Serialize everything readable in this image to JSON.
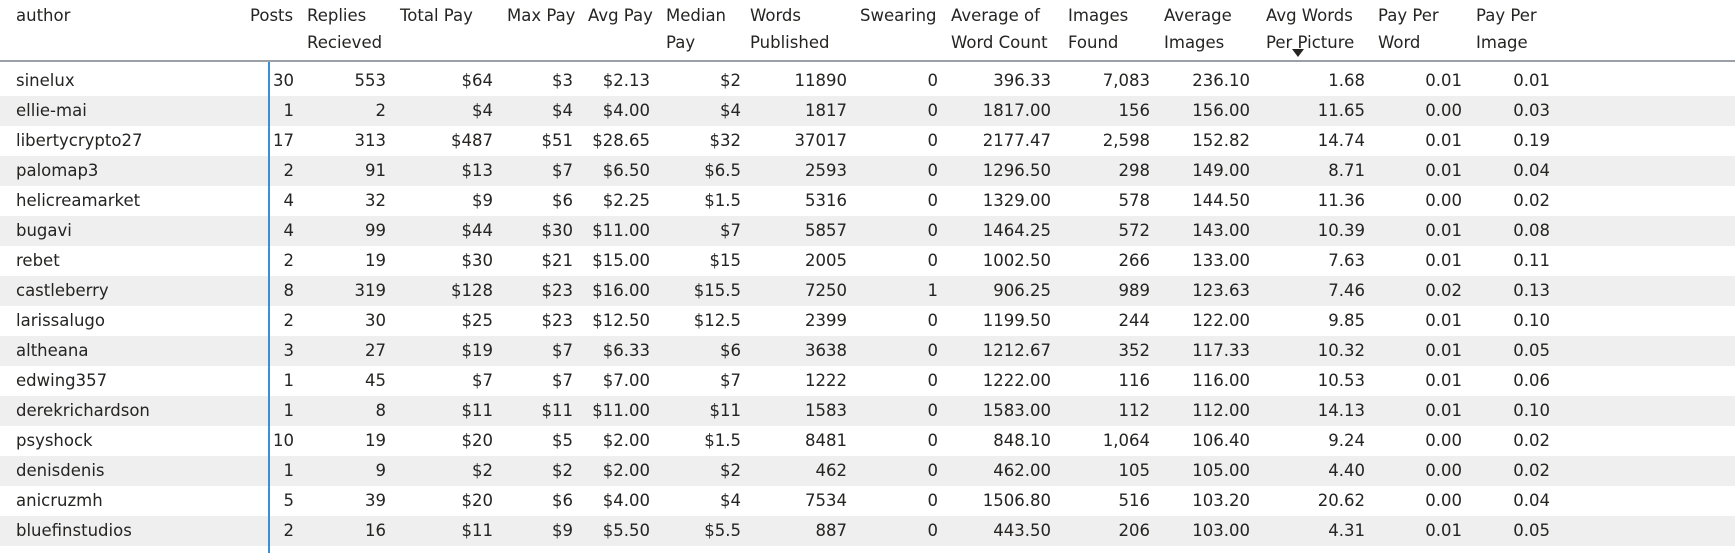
{
  "columns": [
    {
      "label": "author"
    },
    {
      "label": "Posts"
    },
    {
      "label": "Replies\nRecieved"
    },
    {
      "label": "Total Pay"
    },
    {
      "label": "Max Pay"
    },
    {
      "label": "Avg Pay"
    },
    {
      "label": "Median\nPay"
    },
    {
      "label": "Words\nPublished"
    },
    {
      "label": "Swearing"
    },
    {
      "label": "Average of\nWord Count"
    },
    {
      "label": "Images\nFound"
    },
    {
      "label": "Average\nImages"
    },
    {
      "label": "Avg Words\nPer Picture"
    },
    {
      "label": "Pay Per\nWord"
    },
    {
      "label": "Pay Per\nImage"
    }
  ],
  "sort": {
    "column": "Average Images",
    "direction": "descending",
    "icon": "sort-descending-icon"
  },
  "rows": [
    [
      "sinelux",
      "30",
      "553",
      "$64",
      "$3",
      "$2.13",
      "$2",
      "11890",
      "0",
      "396.33",
      "7,083",
      "236.10",
      "1.68",
      "0.01",
      "0.01"
    ],
    [
      "ellie-mai",
      "1",
      "2",
      "$4",
      "$4",
      "$4.00",
      "$4",
      "1817",
      "0",
      "1817.00",
      "156",
      "156.00",
      "11.65",
      "0.00",
      "0.03"
    ],
    [
      "libertycrypto27",
      "17",
      "313",
      "$487",
      "$51",
      "$28.65",
      "$32",
      "37017",
      "0",
      "2177.47",
      "2,598",
      "152.82",
      "14.74",
      "0.01",
      "0.19"
    ],
    [
      "palomap3",
      "2",
      "91",
      "$13",
      "$7",
      "$6.50",
      "$6.5",
      "2593",
      "0",
      "1296.50",
      "298",
      "149.00",
      "8.71",
      "0.01",
      "0.04"
    ],
    [
      "helicreamarket",
      "4",
      "32",
      "$9",
      "$6",
      "$2.25",
      "$1.5",
      "5316",
      "0",
      "1329.00",
      "578",
      "144.50",
      "11.36",
      "0.00",
      "0.02"
    ],
    [
      "bugavi",
      "4",
      "99",
      "$44",
      "$30",
      "$11.00",
      "$7",
      "5857",
      "0",
      "1464.25",
      "572",
      "143.00",
      "10.39",
      "0.01",
      "0.08"
    ],
    [
      "rebet",
      "2",
      "19",
      "$30",
      "$21",
      "$15.00",
      "$15",
      "2005",
      "0",
      "1002.50",
      "266",
      "133.00",
      "7.63",
      "0.01",
      "0.11"
    ],
    [
      "castleberry",
      "8",
      "319",
      "$128",
      "$23",
      "$16.00",
      "$15.5",
      "7250",
      "1",
      "906.25",
      "989",
      "123.63",
      "7.46",
      "0.02",
      "0.13"
    ],
    [
      "larissalugo",
      "2",
      "30",
      "$25",
      "$23",
      "$12.50",
      "$12.5",
      "2399",
      "0",
      "1199.50",
      "244",
      "122.00",
      "9.85",
      "0.01",
      "0.10"
    ],
    [
      "altheana",
      "3",
      "27",
      "$19",
      "$7",
      "$6.33",
      "$6",
      "3638",
      "0",
      "1212.67",
      "352",
      "117.33",
      "10.32",
      "0.01",
      "0.05"
    ],
    [
      "edwing357",
      "1",
      "45",
      "$7",
      "$7",
      "$7.00",
      "$7",
      "1222",
      "0",
      "1222.00",
      "116",
      "116.00",
      "10.53",
      "0.01",
      "0.06"
    ],
    [
      "derekrichardson",
      "1",
      "8",
      "$11",
      "$11",
      "$11.00",
      "$11",
      "1583",
      "0",
      "1583.00",
      "112",
      "112.00",
      "14.13",
      "0.01",
      "0.10"
    ],
    [
      "psyshock",
      "10",
      "19",
      "$20",
      "$5",
      "$2.00",
      "$1.5",
      "8481",
      "0",
      "848.10",
      "1,064",
      "106.40",
      "9.24",
      "0.00",
      "0.02"
    ],
    [
      "denisdenis",
      "1",
      "9",
      "$2",
      "$2",
      "$2.00",
      "$2",
      "462",
      "0",
      "462.00",
      "105",
      "105.00",
      "4.40",
      "0.00",
      "0.02"
    ],
    [
      "anicruzmh",
      "5",
      "39",
      "$20",
      "$6",
      "$4.00",
      "$4",
      "7534",
      "0",
      "1506.80",
      "516",
      "103.20",
      "20.62",
      "0.00",
      "0.04"
    ],
    [
      "bluefinstudios",
      "2",
      "16",
      "$11",
      "$9",
      "$5.50",
      "$5.5",
      "887",
      "0",
      "443.50",
      "206",
      "103.00",
      "4.31",
      "0.01",
      "0.05"
    ]
  ]
}
